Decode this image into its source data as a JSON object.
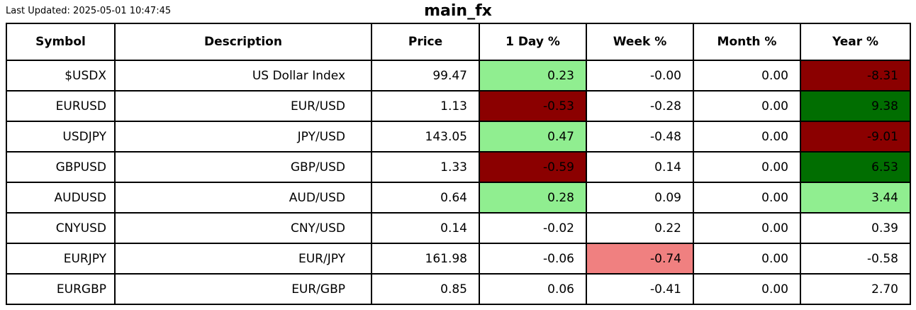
{
  "page": {
    "last_updated": "Last Updated: 2025-05-01 10:47:45",
    "title": "main_fx"
  },
  "colors": {
    "light_green": "#90EE90",
    "dark_green": "#016E01",
    "dark_red": "#8B0000",
    "light_red": "#F08080",
    "border": "#000000",
    "text": "#000000",
    "background": "#FFFFFF"
  },
  "chart_data": {
    "type": "table",
    "title": "main_fx",
    "columns": [
      "Symbol",
      "Description",
      "Price",
      "1 Day %",
      "Week %",
      "Month %",
      "Year %"
    ],
    "rows": [
      [
        {
          "v": "$USDX"
        },
        {
          "v": "US Dollar Index"
        },
        {
          "v": "99.47"
        },
        {
          "v": "0.23",
          "bg": "light_green"
        },
        {
          "v": "-0.00"
        },
        {
          "v": "0.00"
        },
        {
          "v": "-8.31",
          "bg": "dark_red"
        }
      ],
      [
        {
          "v": "EURUSD"
        },
        {
          "v": "EUR/USD"
        },
        {
          "v": "1.13"
        },
        {
          "v": "-0.53",
          "bg": "dark_red"
        },
        {
          "v": "-0.28"
        },
        {
          "v": "0.00"
        },
        {
          "v": "9.38",
          "bg": "dark_green"
        }
      ],
      [
        {
          "v": "USDJPY"
        },
        {
          "v": "JPY/USD"
        },
        {
          "v": "143.05"
        },
        {
          "v": "0.47",
          "bg": "light_green"
        },
        {
          "v": "-0.48"
        },
        {
          "v": "0.00"
        },
        {
          "v": "-9.01",
          "bg": "dark_red"
        }
      ],
      [
        {
          "v": "GBPUSD"
        },
        {
          "v": "GBP/USD"
        },
        {
          "v": "1.33"
        },
        {
          "v": "-0.59",
          "bg": "dark_red"
        },
        {
          "v": "0.14"
        },
        {
          "v": "0.00"
        },
        {
          "v": "6.53",
          "bg": "dark_green"
        }
      ],
      [
        {
          "v": "AUDUSD"
        },
        {
          "v": "AUD/USD"
        },
        {
          "v": "0.64"
        },
        {
          "v": "0.28",
          "bg": "light_green"
        },
        {
          "v": "0.09"
        },
        {
          "v": "0.00"
        },
        {
          "v": "3.44",
          "bg": "light_green"
        }
      ],
      [
        {
          "v": "CNYUSD"
        },
        {
          "v": "CNY/USD"
        },
        {
          "v": "0.14"
        },
        {
          "v": "-0.02"
        },
        {
          "v": "0.22"
        },
        {
          "v": "0.00"
        },
        {
          "v": "0.39"
        }
      ],
      [
        {
          "v": "EURJPY"
        },
        {
          "v": "EUR/JPY"
        },
        {
          "v": "161.98"
        },
        {
          "v": "-0.06"
        },
        {
          "v": "-0.74",
          "bg": "light_red"
        },
        {
          "v": "0.00"
        },
        {
          "v": "-0.58"
        }
      ],
      [
        {
          "v": "EURGBP"
        },
        {
          "v": "EUR/GBP"
        },
        {
          "v": "0.85"
        },
        {
          "v": "0.06"
        },
        {
          "v": "-0.41"
        },
        {
          "v": "0.00"
        },
        {
          "v": "2.70"
        }
      ]
    ]
  }
}
